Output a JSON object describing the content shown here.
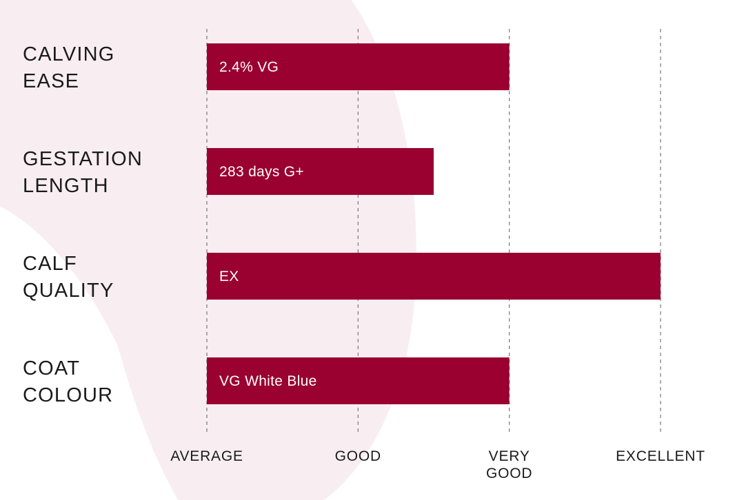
{
  "colors": {
    "bar": "#9a0030",
    "background_shape": "#f8eef1",
    "gridline": "#777777",
    "text": "#1a1a1a",
    "bar_text": "#ffffff"
  },
  "chart_data": {
    "type": "bar",
    "orientation": "horizontal",
    "title": "",
    "xlabel": "",
    "ylabel": "",
    "x_ticks": [
      {
        "value": 0,
        "lines": [
          "AVERAGE"
        ]
      },
      {
        "value": 1,
        "lines": [
          "GOOD"
        ]
      },
      {
        "value": 2,
        "lines": [
          "VERY",
          "GOOD"
        ]
      },
      {
        "value": 3,
        "lines": [
          "EXCELLENT"
        ]
      }
    ],
    "xlim": [
      0,
      3
    ],
    "grid": "vertical-dashed",
    "categories": [
      {
        "lines": [
          "CALVING",
          "EASE"
        ],
        "value": 2.0,
        "label": "2.4% VG"
      },
      {
        "lines": [
          "GESTATION",
          "LENGTH"
        ],
        "value": 1.5,
        "label": "283 days G+"
      },
      {
        "lines": [
          "CALF",
          "QUALITY"
        ],
        "value": 3.0,
        "label": "EX"
      },
      {
        "lines": [
          "COAT",
          "COLOUR"
        ],
        "value": 2.0,
        "label": "VG White Blue"
      }
    ]
  }
}
